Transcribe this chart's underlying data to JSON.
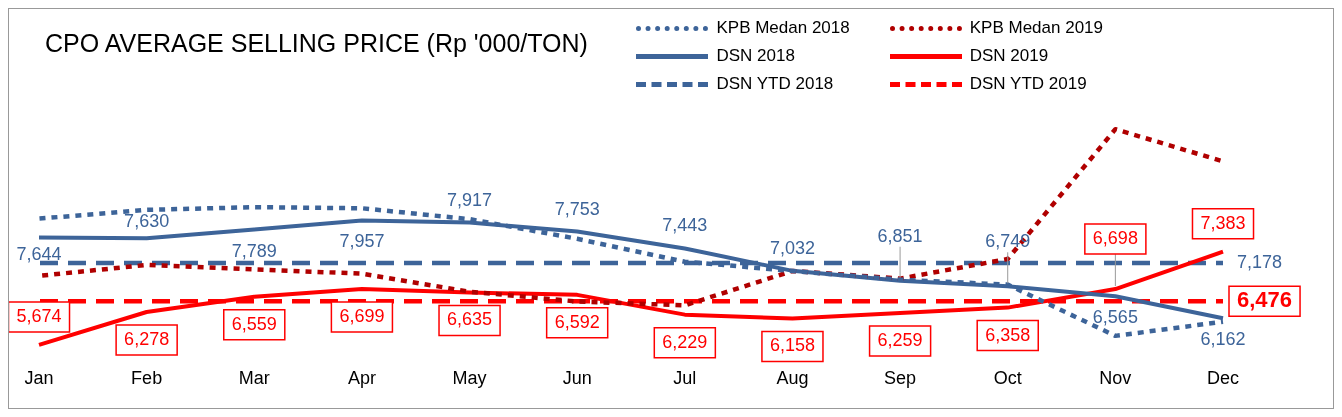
{
  "chart_data": {
    "type": "line",
    "title": "CPO AVERAGE SELLING PRICE (Rp '000/TON)",
    "categories": [
      "Jan",
      "Feb",
      "Mar",
      "Apr",
      "May",
      "Jun",
      "Jul",
      "Aug",
      "Sep",
      "Oct",
      "Nov",
      "Dec"
    ],
    "tick_labels": "x",
    "grid": false,
    "legend": "top right",
    "marker": "none",
    "series": [
      {
        "name": "KPB Medan 2018",
        "color": "#3d6499",
        "line_style": "dotted",
        "values": [
          7990,
          8150,
          8200,
          8180,
          7980,
          7620,
          7200,
          7030,
          6870,
          6780,
          5840,
          6100
        ]
      },
      {
        "name": "KPB Medan 2019",
        "color": "#b00000",
        "line_style": "dotted",
        "values": [
          6940,
          7140,
          7060,
          6980,
          6650,
          6470,
          6400,
          7030,
          6890,
          7250,
          9630,
          9040
        ]
      },
      {
        "name": "DSN 2018",
        "color": "#3d6499",
        "line_style": "solid",
        "values": [
          7644,
          7630,
          7789,
          7957,
          7917,
          7753,
          7443,
          7032,
          6851,
          6749,
          6565,
          6162
        ],
        "value_labels": [
          "7,644",
          "7,630",
          "7,789",
          "7,957",
          "7,917",
          "7,753",
          "7,443",
          "7,032",
          "6,851",
          "6,749",
          "6,565",
          "6,162"
        ]
      },
      {
        "name": "DSN 2019",
        "color": "#ff0000",
        "line_style": "solid",
        "values": [
          5674,
          6278,
          6559,
          6699,
          6635,
          6592,
          6229,
          6158,
          6259,
          6358,
          6698,
          7383
        ],
        "value_labels": [
          "5,674",
          "6,278",
          "6,559",
          "6,699",
          "6,635",
          "6,592",
          "6,229",
          "6,158",
          "6,259",
          "6,358",
          "6,698",
          "7,383"
        ]
      },
      {
        "name": "DSN YTD 2018",
        "color": "#3d6499",
        "line_style": "dashed",
        "values": [
          7178,
          7178,
          7178,
          7178,
          7178,
          7178,
          7178,
          7178,
          7178,
          7178,
          7178,
          7178
        ],
        "value_labels": [
          null,
          null,
          null,
          null,
          null,
          null,
          null,
          null,
          null,
          null,
          null,
          "7,178"
        ]
      },
      {
        "name": "DSN YTD 2019",
        "color": "#ff0000",
        "line_style": "dashed",
        "values": [
          6476,
          6476,
          6476,
          6476,
          6476,
          6476,
          6476,
          6476,
          6476,
          6476,
          6476,
          6476
        ],
        "value_labels": [
          null,
          null,
          null,
          null,
          null,
          null,
          null,
          null,
          null,
          null,
          null,
          "6,476"
        ]
      }
    ]
  }
}
